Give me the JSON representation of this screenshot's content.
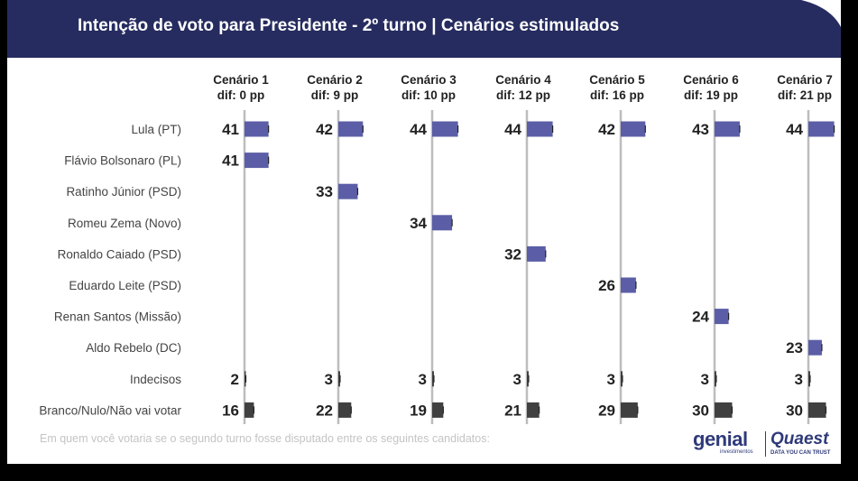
{
  "header": {
    "title": "Intenção de voto para Presidente - 2º turno | Cenários estimulados"
  },
  "colors": {
    "header_bg": "#262c5f",
    "candidate_bar": "#5b5ea6",
    "other_bar": "#404040",
    "axis_line": "#bdbdbd"
  },
  "footnote": "Em quem você votaria se o segundo turno fosse disputado entre os seguintes candidatos:",
  "logos": {
    "genial": "genial",
    "genial_sub": "investimentos",
    "quaest": "Quaest",
    "quaest_sub": "DATA YOU CAN TRUST"
  },
  "chart_data": {
    "type": "bar",
    "orientation": "horizontal",
    "title": "Intenção de voto para Presidente - 2º turno | Cenários estimulados",
    "rows": [
      "Lula (PT)",
      "Flávio Bolsonaro (PL)",
      "Ratinho Júnior (PSD)",
      "Romeu Zema (Novo)",
      "Ronaldo Caiado (PSD)",
      "Eduardo Leite (PSD)",
      "Renan Santos (Missão)",
      "Aldo Rebelo (DC)",
      "Indecisos",
      "Branco/Nulo/Não vai votar"
    ],
    "scenarios": [
      {
        "name": "Cenário 1",
        "dif": "dif: 0 pp",
        "values": [
          41,
          41,
          null,
          null,
          null,
          null,
          null,
          null,
          2,
          16
        ]
      },
      {
        "name": "Cenário 2",
        "dif": "dif: 9 pp",
        "values": [
          42,
          null,
          33,
          null,
          null,
          null,
          null,
          null,
          3,
          22
        ]
      },
      {
        "name": "Cenário 3",
        "dif": "dif: 10 pp",
        "values": [
          44,
          null,
          null,
          34,
          null,
          null,
          null,
          null,
          3,
          19
        ]
      },
      {
        "name": "Cenário 4",
        "dif": "dif: 12 pp",
        "values": [
          44,
          null,
          null,
          null,
          32,
          null,
          null,
          null,
          3,
          21
        ]
      },
      {
        "name": "Cenário 5",
        "dif": "dif: 16 pp",
        "values": [
          42,
          null,
          null,
          null,
          null,
          26,
          null,
          null,
          3,
          29
        ]
      },
      {
        "name": "Cenário 6",
        "dif": "dif: 19 pp",
        "values": [
          43,
          null,
          null,
          null,
          null,
          null,
          24,
          null,
          3,
          30
        ]
      },
      {
        "name": "Cenário 7",
        "dif": "dif: 21 pp",
        "values": [
          44,
          null,
          null,
          null,
          null,
          null,
          null,
          23,
          3,
          30
        ]
      }
    ]
  }
}
